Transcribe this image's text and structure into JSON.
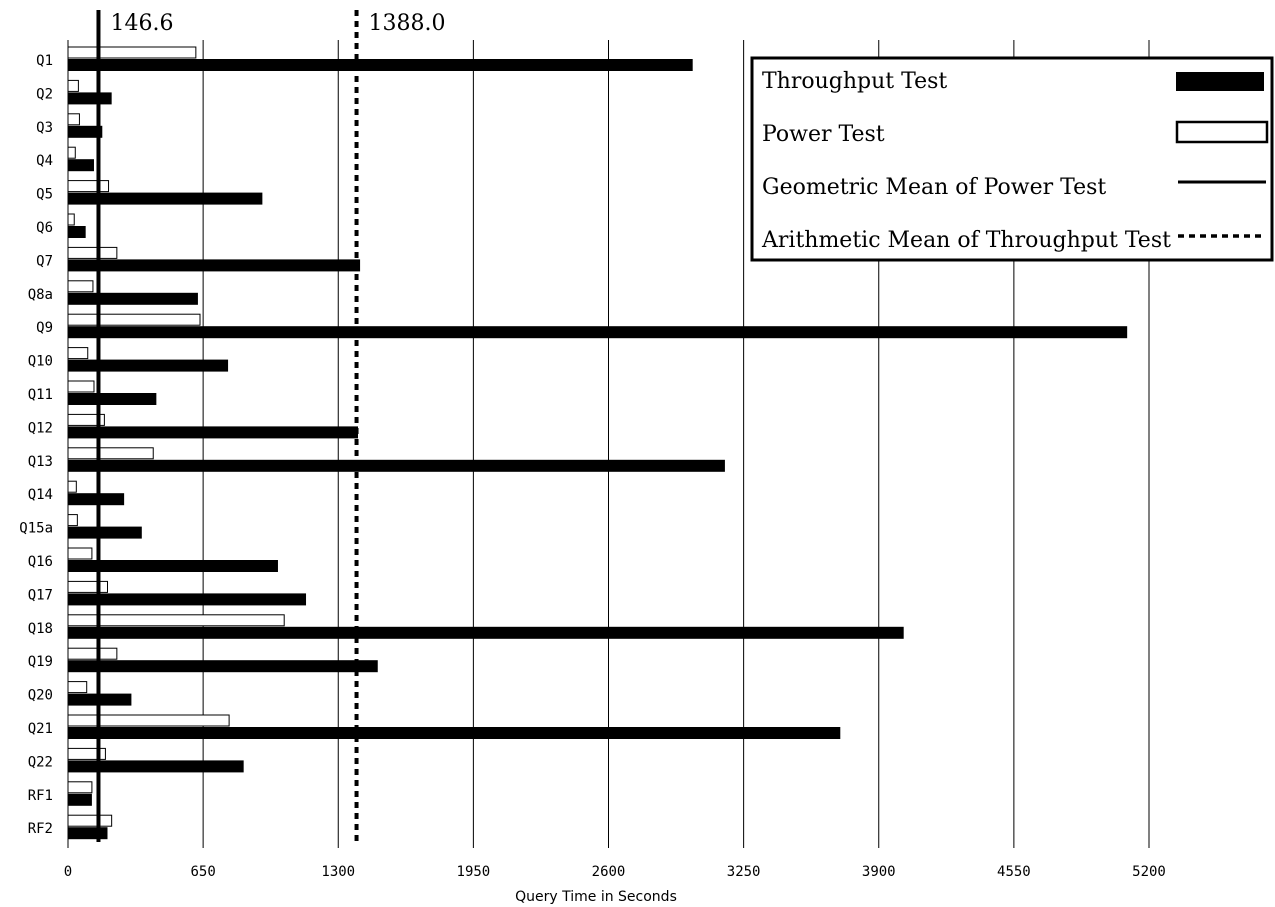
{
  "chart_data": {
    "type": "bar",
    "orientation": "horizontal",
    "categories": [
      "Q1",
      "Q2",
      "Q3",
      "Q4",
      "Q5",
      "Q6",
      "Q7",
      "Q8a",
      "Q9",
      "Q10",
      "Q11",
      "Q12",
      "Q13",
      "Q14",
      "Q15a",
      "Q16",
      "Q17",
      "Q18",
      "Q19",
      "Q20",
      "Q21",
      "Q22",
      "RF1",
      "RF2"
    ],
    "series": [
      {
        "name": "Power Test",
        "style": "hollow",
        "values": [
          615,
          50,
          55,
          35,
          195,
          30,
          235,
          120,
          635,
          95,
          125,
          175,
          410,
          40,
          45,
          115,
          190,
          1040,
          235,
          90,
          775,
          180,
          115,
          210
        ]
      },
      {
        "name": "Throughput Test",
        "style": "solid",
        "values": [
          3005,
          210,
          165,
          125,
          935,
          85,
          1405,
          625,
          5095,
          770,
          425,
          1395,
          3160,
          270,
          355,
          1010,
          1145,
          4020,
          1490,
          305,
          3715,
          845,
          115,
          190
        ]
      }
    ],
    "reference_lines": [
      {
        "name": "Geometric Mean of Power Test",
        "value": 146.6,
        "label": "146.6",
        "style": "solid"
      },
      {
        "name": "Arithmetic Mean of Throughput Test",
        "value": 1388.0,
        "label": "1388.0",
        "style": "dotted"
      }
    ],
    "xlabel": "Query Time in Seconds",
    "xlim": [
      0,
      5200
    ],
    "xticks": [
      0,
      650,
      1300,
      1950,
      2600,
      3250,
      3900,
      4550,
      5200
    ],
    "grid": "vertical",
    "legend": {
      "position": "top-right",
      "entries": [
        {
          "label": "Throughput Test",
          "symbol": "solid-bar"
        },
        {
          "label": "Power Test",
          "symbol": "hollow-bar"
        },
        {
          "label": "Geometric Mean of Power Test",
          "symbol": "solid-line"
        },
        {
          "label": "Arithmetic Mean of Throughput Test",
          "symbol": "dotted-line"
        }
      ]
    },
    "colors": {
      "bar_fill": "#000000",
      "hollow_fill": "#ffffff",
      "stroke": "#000000"
    }
  }
}
